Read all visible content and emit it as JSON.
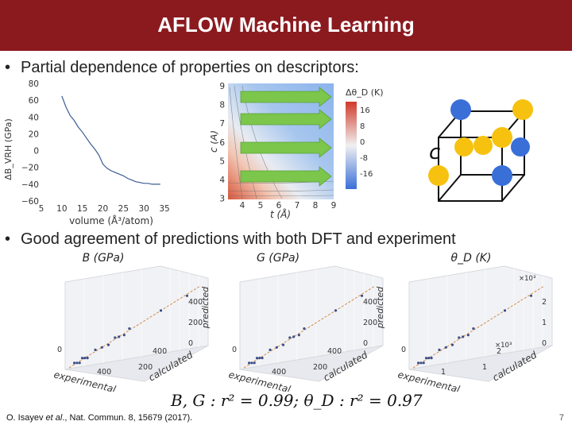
{
  "slide": {
    "title": "AFLOW Machine Learning",
    "bullet1": "Partial dependence of properties on descriptors:",
    "bullet2": "Good agreement of predictions with both DFT and experiment",
    "stats": "B, G : r² = 0.99; θ_D : r² = 0.97",
    "citation_prefix": "O. Isayev ",
    "citation_etal": "et al",
    "citation_suffix": "., Nat. Commun. 8, 15679 (2017).",
    "page_number": "7"
  },
  "chart_data": [
    {
      "type": "line",
      "xlabel": "volume (Å³/atom)",
      "ylabel": "ΔB_VRH (GPa)",
      "xlim": [
        5,
        35
      ],
      "ylim": [
        -60,
        80
      ],
      "xticks": [
        "5",
        "10",
        "15",
        "20",
        "25",
        "30",
        "35"
      ],
      "yticks": [
        "80",
        "60",
        "40",
        "20",
        "0",
        "−20",
        "−40",
        "−60"
      ],
      "x": [
        10,
        11,
        12,
        13,
        14,
        15,
        16,
        17,
        18,
        19,
        20,
        21,
        22,
        23,
        24,
        25,
        26,
        27,
        28,
        29,
        30,
        31,
        32,
        33,
        34
      ],
      "values": [
        65,
        52,
        42,
        36,
        28,
        22,
        15,
        8,
        2,
        -5,
        -16,
        -21,
        -24,
        -26,
        -28,
        -30,
        -33,
        -35,
        -37,
        -38,
        -39,
        -39,
        -40,
        -40,
        -40
      ]
    },
    {
      "type": "heatmap",
      "xlabel": "t (Å)",
      "ylabel": "c (Å)",
      "colorbar_label": "Δθ_D (K)",
      "xticks": [
        "4",
        "5",
        "6",
        "7",
        "8",
        "9"
      ],
      "yticks": [
        "9",
        "8",
        "7",
        "6",
        "5",
        "4",
        "3"
      ],
      "colorbar_ticks": [
        "16",
        "8",
        "0",
        "-8",
        "-16"
      ],
      "clim": [
        -16,
        16
      ]
    },
    {
      "type": "scatter",
      "title": "B (GPa)",
      "xlabel": "experimental",
      "ylabel": "predicted",
      "zlabel": "calculated",
      "ticks": [
        "400",
        "200",
        "0"
      ],
      "zticks": [
        "400",
        "200",
        "0"
      ]
    },
    {
      "type": "scatter",
      "title": "G (GPa)",
      "xlabel": "experimental",
      "ylabel": "predicted",
      "zlabel": "calculated",
      "ticks": [
        "400",
        "200",
        "0"
      ],
      "zticks": [
        "400",
        "200",
        "0"
      ]
    },
    {
      "type": "scatter",
      "title": "θ_D (K)",
      "xlabel": "experimental",
      "ylabel": "predicted",
      "zlabel": "calculated",
      "ticks": [
        "2",
        "1",
        "0"
      ],
      "multiplier": "×10³"
    }
  ],
  "structure": {
    "axis_label": "c",
    "colors": {
      "blue": "#3a6fd8",
      "yellow": "#f6c20f",
      "arrow": "#7bc64b",
      "title": "#8b1a1f"
    }
  }
}
